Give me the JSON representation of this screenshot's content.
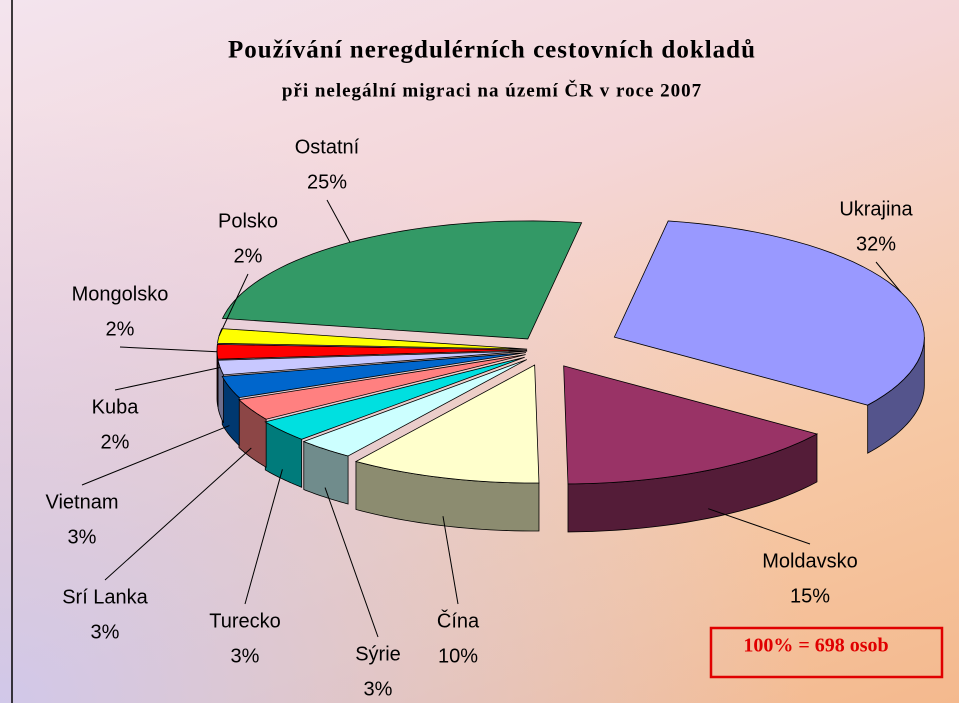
{
  "chart_data": {
    "type": "pie",
    "title": "Používání neregdulérních cestovních dokladů",
    "subtitle": "při nelegální migraci na území ČR v roce 2007",
    "annotation": "100% = 698 osob",
    "categories": [
      "Ukrajina",
      "Moldavsko",
      "Čína",
      "Sýrie",
      "Turecko",
      "Srí Lanka",
      "Vietnam",
      "Kuba",
      "Mongolsko",
      "Polsko",
      "Ostatní"
    ],
    "values": [
      32,
      15,
      10,
      3,
      3,
      3,
      3,
      2,
      2,
      2,
      25
    ],
    "value_labels": [
      "32%",
      "15%",
      "10%",
      "3%",
      "3%",
      "3%",
      "3%",
      "2%",
      "2%",
      "2%",
      "25%"
    ],
    "colors": [
      "#9999ff",
      "#993366",
      "#ffffcc",
      "#ccffff",
      "#00e0e0",
      "#ff8080",
      "#0066cc",
      "#c8c8ff",
      "#ff0000",
      "#ffff00",
      "#339966"
    ]
  }
}
